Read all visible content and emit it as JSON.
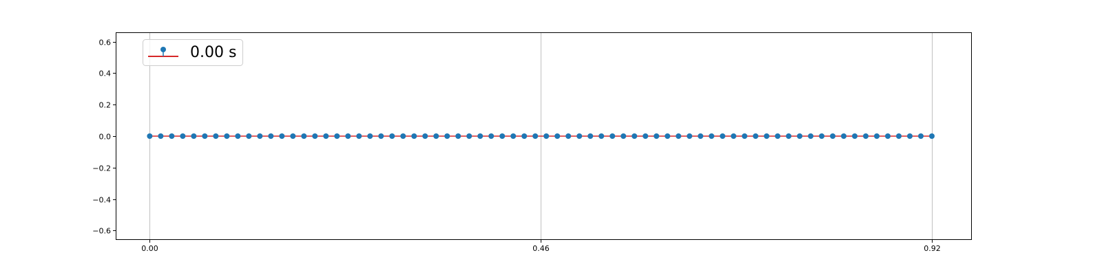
{
  "chart_data": {
    "type": "stem",
    "title": "",
    "xlabel": "",
    "ylabel": "",
    "xlim": [
      -0.04,
      0.967
    ],
    "ylim": [
      -0.66,
      0.66
    ],
    "x_ticks": [
      0.0,
      0.46,
      0.92
    ],
    "x_tick_labels": [
      "0.00",
      "0.46",
      "0.92"
    ],
    "y_ticks": [
      0.6,
      0.4,
      0.2,
      0.0,
      -0.2,
      -0.4,
      -0.6
    ],
    "y_tick_labels": [
      "0.6",
      "0.4",
      "0.2",
      "0.0",
      "−0.2",
      "−0.4",
      "−0.6"
    ],
    "grid": "x-only",
    "legend": {
      "position": "top-left",
      "label": "0.00 s"
    },
    "series": [
      {
        "name": "0.00 s",
        "x_start": 0.0,
        "x_end": 0.92,
        "num_points": 72,
        "y_value": 0.0,
        "marker_color": "#1f77b4",
        "baseline_color": "#d62728"
      }
    ]
  }
}
